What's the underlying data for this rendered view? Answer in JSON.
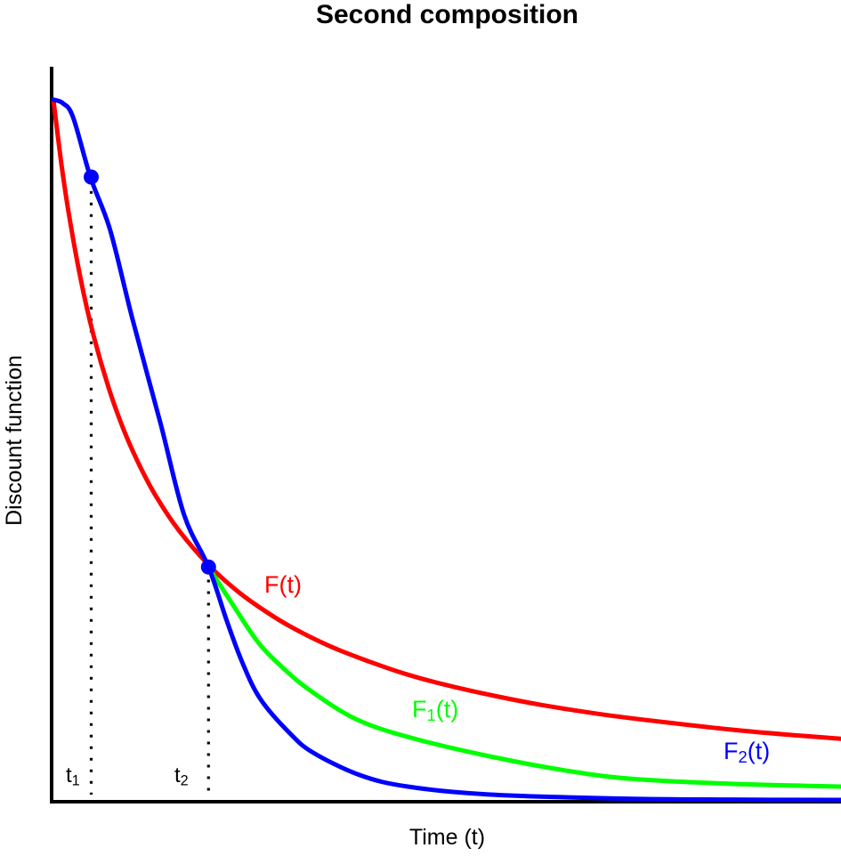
{
  "chart_data": {
    "type": "line",
    "title": "Second composition",
    "xlabel": "Time (t)",
    "ylabel": "Discount function",
    "xlim": [
      0,
      1
    ],
    "ylim": [
      0,
      1
    ],
    "x_ticks": [],
    "y_ticks": [],
    "grid": false,
    "legend_position": "labels on curves",
    "axis_color": "#000000",
    "series": [
      {
        "id": "F",
        "name": "F(t)",
        "color": "#ff0000",
        "points": [
          [
            0,
            1.0
          ],
          [
            0.01,
            0.91
          ],
          [
            0.02,
            0.835
          ],
          [
            0.035,
            0.743
          ],
          [
            0.05,
            0.669
          ],
          [
            0.07,
            0.591
          ],
          [
            0.09,
            0.529
          ],
          [
            0.11,
            0.479
          ],
          [
            0.13,
            0.437
          ],
          [
            0.16,
            0.387
          ],
          [
            0.197,
            0.339
          ],
          [
            0.23,
            0.305
          ],
          [
            0.26,
            0.28
          ],
          [
            0.3,
            0.252
          ],
          [
            0.35,
            0.224
          ],
          [
            0.4,
            0.202
          ],
          [
            0.45,
            0.183
          ],
          [
            0.5,
            0.168
          ],
          [
            0.56,
            0.153
          ],
          [
            0.62,
            0.14
          ],
          [
            0.7,
            0.126
          ],
          [
            0.78,
            0.115
          ],
          [
            0.86,
            0.105
          ],
          [
            0.93,
            0.098
          ],
          [
            1.0,
            0.092
          ]
        ]
      },
      {
        "id": "F1",
        "name": "F1(t)",
        "color": "#00ff00",
        "points": [
          [
            0.197,
            0.336
          ],
          [
            0.228,
            0.282
          ],
          [
            0.26,
            0.229
          ],
          [
            0.294,
            0.19
          ],
          [
            0.328,
            0.159
          ],
          [
            0.384,
            0.12
          ],
          [
            0.452,
            0.094
          ],
          [
            0.554,
            0.067
          ],
          [
            0.655,
            0.046
          ],
          [
            0.734,
            0.035
          ],
          [
            0.86,
            0.028
          ],
          [
            1.0,
            0.024
          ]
        ]
      },
      {
        "id": "F2",
        "name": "F2(t)",
        "color": "#0000ff",
        "points": [
          [
            0,
            1.0
          ],
          [
            0.012,
            0.995
          ],
          [
            0.025,
            0.975
          ],
          [
            0.047,
            0.89
          ],
          [
            0.072,
            0.815
          ],
          [
            0.1,
            0.69
          ],
          [
            0.136,
            0.54
          ],
          [
            0.166,
            0.41
          ],
          [
            0.197,
            0.336
          ],
          [
            0.22,
            0.26
          ],
          [
            0.24,
            0.2
          ],
          [
            0.263,
            0.148
          ],
          [
            0.3,
            0.1
          ],
          [
            0.33,
            0.072
          ],
          [
            0.39,
            0.04
          ],
          [
            0.45,
            0.024
          ],
          [
            0.55,
            0.013
          ],
          [
            0.72,
            0.007
          ],
          [
            0.86,
            0.0055
          ],
          [
            1.0,
            0.005
          ]
        ]
      }
    ],
    "markers": [
      {
        "id": "t1",
        "t": 0.048,
        "from_v": 0.87,
        "to_v": 0.0126
      },
      {
        "id": "t2",
        "t": 0.197,
        "from_v": 0.318,
        "to_v": 0.0126
      }
    ],
    "points_of_interest": [
      {
        "t": 0.048,
        "v": 0.89,
        "color": "#0000ff"
      },
      {
        "t": 0.197,
        "v": 0.336,
        "color": "#0000ff"
      }
    ]
  },
  "labels": {
    "f": {
      "pre": "F",
      "sub": "",
      "post": "(t)",
      "color": "#ff0000"
    },
    "f1": {
      "pre": "F",
      "sub": "1",
      "post": "(t)",
      "color": "#00ff00"
    },
    "f2": {
      "pre": "F",
      "sub": "2",
      "post": "(t)",
      "color": "#0000ff"
    },
    "t1": {
      "pre": "t",
      "sub": "1",
      "post": ""
    },
    "t2": {
      "pre": "t",
      "sub": "2",
      "post": ""
    }
  }
}
